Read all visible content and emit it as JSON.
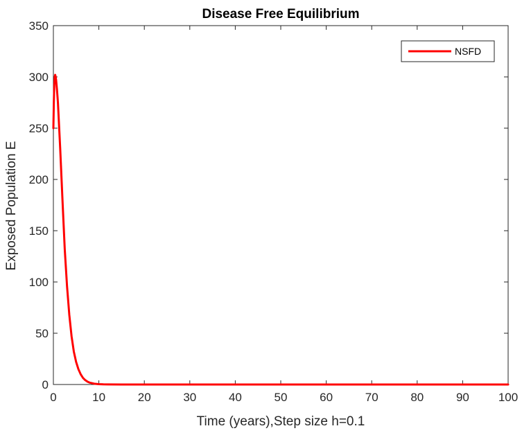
{
  "chart_data": {
    "type": "line",
    "title": "Disease Free Equilibrium",
    "xlabel": "Time (years),Step size h=0.1",
    "ylabel": "Exposed Population E",
    "xlim": [
      0,
      100
    ],
    "ylim": [
      0,
      350
    ],
    "xticks": [
      0,
      10,
      20,
      30,
      40,
      50,
      60,
      70,
      80,
      90,
      100
    ],
    "yticks": [
      0,
      50,
      100,
      150,
      200,
      250,
      300,
      350
    ],
    "grid": false,
    "legend_position": "top-right",
    "series": [
      {
        "name": "NSFD",
        "color": "#ff0000",
        "x": [
          0,
          0.1,
          0.2,
          0.3,
          0.4,
          0.5,
          0.6,
          0.8,
          1.0,
          1.5,
          2.0,
          2.5,
          3.0,
          3.5,
          4.0,
          4.5,
          5.0,
          5.5,
          6.0,
          6.5,
          7.0,
          7.5,
          8.0,
          9.0,
          10.0,
          11.0,
          12.0,
          15.0,
          20.0,
          30.0,
          50.0,
          75.0,
          100.0
        ],
        "y": [
          250,
          275,
          292,
          300,
          302,
          300,
          297,
          287,
          275,
          230,
          180,
          132,
          96,
          68,
          47,
          32,
          22,
          15,
          10,
          6.5,
          4.3,
          2.8,
          1.8,
          0.8,
          0.35,
          0.15,
          0.07,
          0.01,
          0,
          0,
          0,
          0,
          0
        ]
      }
    ]
  }
}
